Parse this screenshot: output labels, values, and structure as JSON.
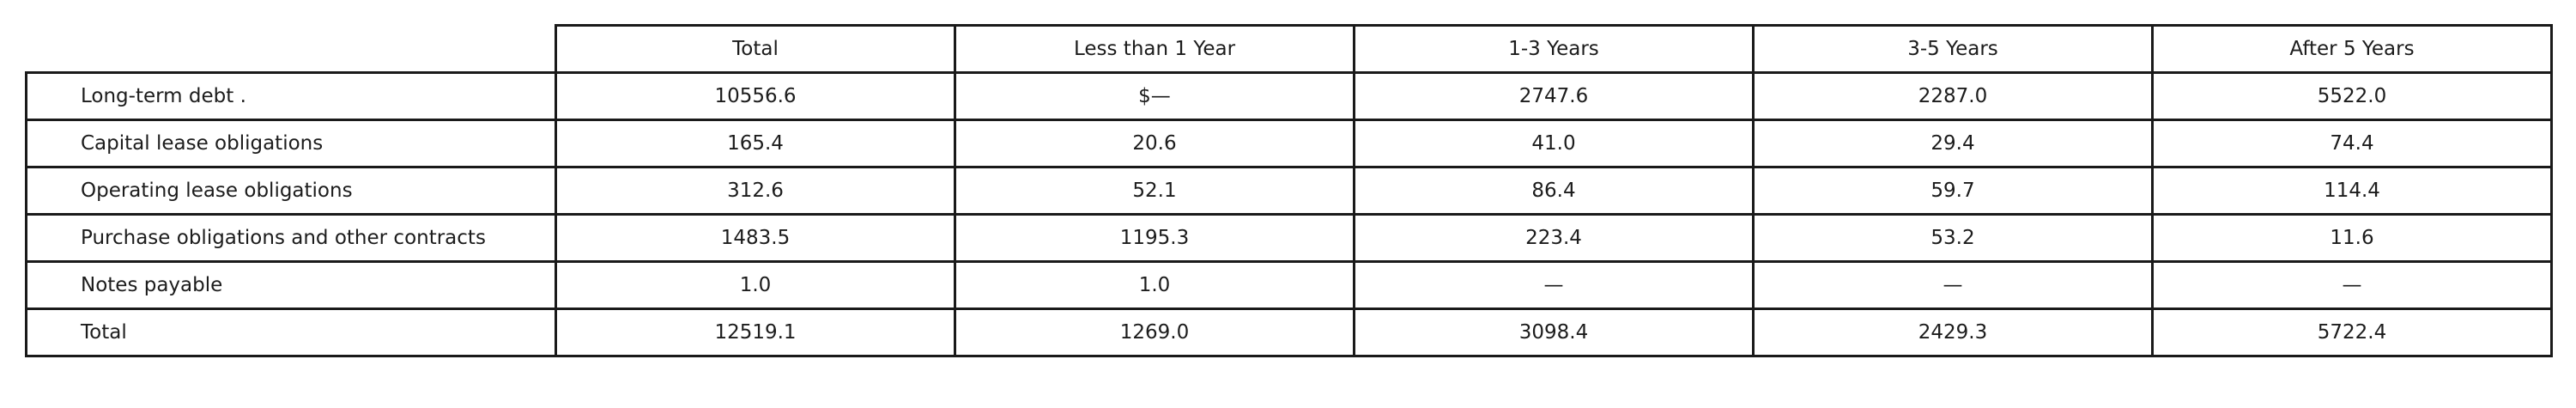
{
  "table": {
    "headers": [
      "",
      "Total",
      "Less than 1 Year",
      "1-3 Years",
      "3-5 Years",
      "After 5 Years"
    ],
    "rows": [
      [
        "Long-term debt .",
        "10556.6",
        "$—",
        "2747.6",
        "2287.0",
        "5522.0"
      ],
      [
        "Capital lease obligations",
        "165.4",
        "20.6",
        "41.0",
        "29.4",
        "74.4"
      ],
      [
        "Operating lease obligations",
        "312.6",
        "52.1",
        "86.4",
        "59.7",
        "114.4"
      ],
      [
        "Purchase obligations and other contracts",
        "1483.5",
        "1195.3",
        "223.4",
        "53.2",
        "11.6"
      ],
      [
        "Notes payable",
        "1.0",
        "1.0",
        "—",
        "—",
        "—"
      ],
      [
        "Total",
        "12519.1",
        "1269.0",
        "3098.4",
        "2429.3",
        "5722.4"
      ]
    ]
  }
}
